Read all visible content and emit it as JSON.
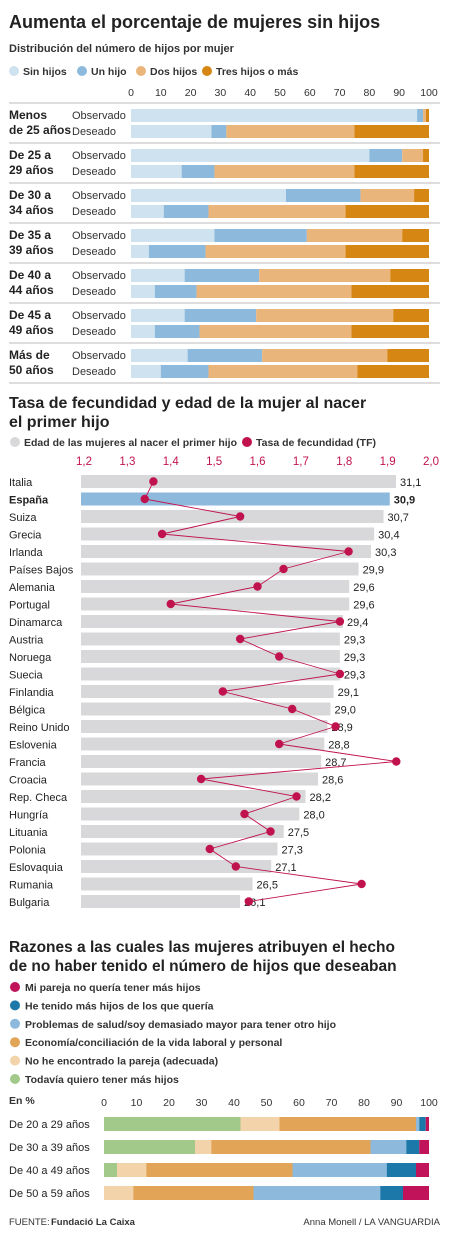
{
  "section1": {
    "title": "Aumenta el porcentaje de mujeres sin hijos",
    "subtitle": "Distribución del número de hijos por mujer",
    "legend": [
      {
        "label": "Sin hijos",
        "color": "#cfe2ef"
      },
      {
        "label": "Un hijo",
        "color": "#8dbadc"
      },
      {
        "label": "Dos hijos",
        "color": "#e9b57b"
      },
      {
        "label": "Tres hijos o más",
        "color": "#d68612"
      }
    ]
  },
  "section2": {
    "title_line1": "Tasa de fecundidad y edad de la mujer al nacer",
    "title_line2": "el primer hijo",
    "legend_age": "Edad de las mujeres al nacer el primer hijo",
    "legend_tf": "Tasa de fecundidad (TF)",
    "age_color": "#d8d8da",
    "highlight_color": "#8dbadc",
    "tf_color": "#c0134e"
  },
  "section3": {
    "title_line1": "Razones a las cuales las mujeres atribuyen el hecho",
    "title_line2": "de no haber tenido el número de hijos que deseaban",
    "unit_label": "En %",
    "legend": [
      {
        "label": "Mi pareja no quería tener más hijos",
        "color": "#c0135a"
      },
      {
        "label": "He tenido más hijos de los que quería",
        "color": "#1b78a8"
      },
      {
        "label": "Problemas de salud/soy demasiado mayor para tener otro hijo",
        "color": "#8dbadc"
      },
      {
        "label": "Economía/conciliación de la vida laboral y personal",
        "color": "#e2a457"
      },
      {
        "label": "No he encontrado la pareja (adecuada)",
        "color": "#f3d3a9"
      },
      {
        "label": "Todavía quiero tener más hijos",
        "color": "#a2c98a"
      }
    ]
  },
  "footer": {
    "source_label": "FUENTE:",
    "source": "Fundació La Caixa",
    "credit": "Anna Monell / LA VANGUARDIA"
  },
  "chart_data": [
    {
      "type": "bar",
      "stacked": true,
      "orientation": "horizontal",
      "title": "Aumenta el porcentaje de mujeres sin hijos",
      "subtitle": "Distribución del número de hijos por mujer",
      "x_ticks": [
        "0",
        "10",
        "20",
        "30",
        "40",
        "50",
        "60",
        "70",
        "80",
        "90",
        "100"
      ],
      "xlim": [
        0,
        100
      ],
      "series_names": [
        "Sin hijos",
        "Un hijo",
        "Dos hijos",
        "Tres hijos o más"
      ],
      "groups": [
        {
          "label": [
            "Menos",
            "de 25 años"
          ],
          "rows": [
            {
              "label": "Observado",
              "values": [
                96,
                2,
                1,
                1
              ]
            },
            {
              "label": "Deseado",
              "values": [
                27,
                5,
                43,
                25
              ]
            }
          ]
        },
        {
          "label": [
            "De 25 a",
            "29 años"
          ],
          "rows": [
            {
              "label": "Observado",
              "values": [
                80,
                11,
                7,
                2
              ]
            },
            {
              "label": "Deseado",
              "values": [
                17,
                11,
                47,
                25
              ]
            }
          ]
        },
        {
          "label": [
            "De 30 a",
            "34 años"
          ],
          "rows": [
            {
              "label": "Observado",
              "values": [
                52,
                25,
                18,
                5
              ]
            },
            {
              "label": "Deseado",
              "values": [
                11,
                15,
                46,
                28
              ]
            }
          ]
        },
        {
          "label": [
            "De 35 a",
            "39 años"
          ],
          "rows": [
            {
              "label": "Observado",
              "values": [
                28,
                31,
                32,
                9
              ]
            },
            {
              "label": "Deseado",
              "values": [
                6,
                19,
                47,
                28
              ]
            }
          ]
        },
        {
          "label": [
            "De 40 a",
            "44 años"
          ],
          "rows": [
            {
              "label": "Observado",
              "values": [
                18,
                25,
                44,
                13
              ]
            },
            {
              "label": "Deseado",
              "values": [
                8,
                14,
                52,
                26
              ]
            }
          ]
        },
        {
          "label": [
            "De 45 a",
            "49 años"
          ],
          "rows": [
            {
              "label": "Observado",
              "values": [
                18,
                24,
                46,
                12
              ]
            },
            {
              "label": "Deseado",
              "values": [
                8,
                15,
                51,
                26
              ]
            }
          ]
        },
        {
          "label": [
            "Más de",
            "50 años"
          ],
          "rows": [
            {
              "label": "Observado",
              "values": [
                19,
                25,
                42,
                14
              ]
            },
            {
              "label": "Deseado",
              "values": [
                10,
                16,
                50,
                24
              ]
            }
          ]
        }
      ]
    },
    {
      "type": "bar",
      "orientation": "horizontal",
      "title": "Tasa de fecundidad y edad de la mujer al nacer el primer hijo",
      "series_names": [
        "Edad de las mujeres al nacer el primer hijo",
        "Tasa de fecundidad (TF)"
      ],
      "tf_ticks": [
        "1,2",
        "1,3",
        "1,4",
        "1,5",
        "1,6",
        "1,7",
        "1,8",
        "1,9",
        "2,0"
      ],
      "tf_range": [
        1.2,
        2.0
      ],
      "age_range": [
        21,
        31.1
      ],
      "highlight": "España",
      "countries": [
        {
          "name": "Italia",
          "age": 31.1,
          "age_label": "31,1",
          "tf": 1.36
        },
        {
          "name": "España",
          "age": 30.9,
          "age_label": "30,9",
          "tf": 1.34
        },
        {
          "name": "Suiza",
          "age": 30.7,
          "age_label": "30,7",
          "tf": 1.56
        },
        {
          "name": "Grecia",
          "age": 30.4,
          "age_label": "30,4",
          "tf": 1.38
        },
        {
          "name": "Irlanda",
          "age": 30.3,
          "age_label": "30,3",
          "tf": 1.81
        },
        {
          "name": "Países Bajos",
          "age": 29.9,
          "age_label": "29,9",
          "tf": 1.66
        },
        {
          "name": "Alemania",
          "age": 29.6,
          "age_label": "29,6",
          "tf": 1.6
        },
        {
          "name": "Portugal",
          "age": 29.6,
          "age_label": "29,6",
          "tf": 1.4
        },
        {
          "name": "Dinamarca",
          "age": 29.4,
          "age_label": "29,4",
          "tf": 1.79
        },
        {
          "name": "Austria",
          "age": 29.3,
          "age_label": "29,3",
          "tf": 1.56
        },
        {
          "name": "Noruega",
          "age": 29.3,
          "age_label": "29,3",
          "tf": 1.65
        },
        {
          "name": "Suecia",
          "age": 29.3,
          "age_label": "29,3",
          "tf": 1.79
        },
        {
          "name": "Finlandia",
          "age": 29.1,
          "age_label": "29,1",
          "tf": 1.52
        },
        {
          "name": "Bélgica",
          "age": 29.0,
          "age_label": "29,0",
          "tf": 1.68
        },
        {
          "name": "Reino Unido",
          "age": 28.9,
          "age_label": "28,9",
          "tf": 1.78
        },
        {
          "name": "Eslovenia",
          "age": 28.8,
          "age_label": "28,8",
          "tf": 1.65
        },
        {
          "name": "Francia",
          "age": 28.7,
          "age_label": "28,7",
          "tf": 1.92
        },
        {
          "name": "Croacia",
          "age": 28.6,
          "age_label": "28,6",
          "tf": 1.47
        },
        {
          "name": "Rep. Checa",
          "age": 28.2,
          "age_label": "28,2",
          "tf": 1.69
        },
        {
          "name": "Hungría",
          "age": 28.0,
          "age_label": "28,0",
          "tf": 1.57
        },
        {
          "name": "Lituania",
          "age": 27.5,
          "age_label": "27,5",
          "tf": 1.63
        },
        {
          "name": "Polonia",
          "age": 27.3,
          "age_label": "27,3",
          "tf": 1.49
        },
        {
          "name": "Eslovaquia",
          "age": 27.1,
          "age_label": "27,1",
          "tf": 1.55
        },
        {
          "name": "Rumania",
          "age": 26.5,
          "age_label": "26,5",
          "tf": 1.84
        },
        {
          "name": "Bulgaria",
          "age": 26.1,
          "age_label": "26,1",
          "tf": 1.58
        }
      ]
    },
    {
      "type": "bar",
      "stacked": true,
      "orientation": "horizontal",
      "title": "Razones a las cuales las mujeres atribuyen el hecho de no haber tenido el número de hijos que deseaban",
      "unit": "En %",
      "x_ticks": [
        "0",
        "10",
        "20",
        "30",
        "40",
        "50",
        "60",
        "70",
        "80",
        "90",
        "100"
      ],
      "xlim": [
        0,
        100
      ],
      "series_order": [
        "Todavía quiero tener más hijos",
        "No he encontrado la pareja (adecuada)",
        "Economía/conciliación de la vida laboral y personal",
        "Problemas de salud/soy demasiado mayor para tener otro hijo",
        "He tenido más hijos de los que quería",
        "Mi pareja no quería tener más hijos"
      ],
      "rows": [
        {
          "label": "De 20 a 29 años",
          "values": [
            42,
            12,
            42,
            1,
            2,
            1
          ]
        },
        {
          "label": "De 30 a 39 años",
          "values": [
            28,
            5,
            49,
            11,
            4,
            3
          ]
        },
        {
          "label": "De 40 a 49 años",
          "values": [
            4,
            9,
            45,
            29,
            9,
            4
          ]
        },
        {
          "label": "De 50 a 59 años",
          "values": [
            0,
            9,
            37,
            39,
            7,
            8
          ]
        }
      ]
    }
  ]
}
